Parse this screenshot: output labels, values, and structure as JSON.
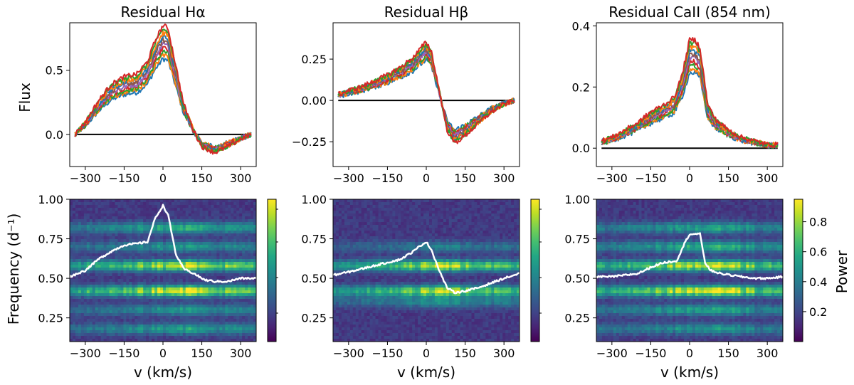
{
  "figure": {
    "flux_ylabel": "Flux",
    "freq_ylabel": "Frequency (d⁻¹)",
    "xlabel": "v (km/s)",
    "colorbar_label": "Power"
  },
  "colors": {
    "profiles": [
      "#1f77b4",
      "#ff7f0e",
      "#2ca02c",
      "#d62728",
      "#9467bd",
      "#8c564b"
    ],
    "zero_line": "#000000",
    "overlay_line": "#ffffff"
  },
  "chart_data": [
    {
      "type": "line",
      "title": "Residual Hα",
      "xlabel": "",
      "ylabel": "Flux",
      "xlim": [
        -360,
        360
      ],
      "ylim": [
        -0.25,
        0.87
      ],
      "xticks": [
        -300,
        -150,
        0,
        150,
        300
      ],
      "xtick_labels": [
        "−300",
        "−150",
        "0",
        "150",
        "300"
      ],
      "yticks": [
        0.0,
        0.5
      ],
      "ytick_labels": [
        "0.0",
        "0.5"
      ],
      "zero_line": 0,
      "grid": false,
      "series_profile": {
        "x": [
          -340,
          -300,
          -250,
          -200,
          -150,
          -100,
          -60,
          -30,
          0,
          20,
          50,
          80,
          120,
          150,
          200,
          250,
          300,
          340
        ],
        "y": [
          0.0,
          0.08,
          0.22,
          0.33,
          0.38,
          0.4,
          0.48,
          0.62,
          0.72,
          0.7,
          0.45,
          0.2,
          0.02,
          -0.08,
          -0.12,
          -0.08,
          -0.03,
          0.0
        ]
      }
    },
    {
      "type": "line",
      "title": "Residual Hβ",
      "xlabel": "",
      "ylabel": "",
      "xlim": [
        -360,
        360
      ],
      "ylim": [
        -0.4,
        0.47
      ],
      "xticks": [
        -300,
        -150,
        0,
        150,
        300
      ],
      "xtick_labels": [
        "−300",
        "−150",
        "0",
        "150",
        "300"
      ],
      "yticks": [
        -0.25,
        0.0,
        0.25
      ],
      "ytick_labels": [
        "−0.25",
        "0.00",
        "0.25"
      ],
      "zero_line": 0,
      "grid": false,
      "series_profile": {
        "x": [
          -340,
          -300,
          -250,
          -200,
          -150,
          -100,
          -50,
          -20,
          0,
          20,
          50,
          80,
          110,
          150,
          200,
          250,
          300,
          340
        ],
        "y": [
          0.03,
          0.05,
          0.07,
          0.1,
          0.13,
          0.17,
          0.22,
          0.27,
          0.3,
          0.25,
          0.05,
          -0.15,
          -0.22,
          -0.18,
          -0.12,
          -0.06,
          -0.02,
          0.0
        ]
      }
    },
    {
      "type": "line",
      "title": "Residual CaII (854 nm)",
      "xlabel": "",
      "ylabel": "",
      "xlim": [
        -360,
        360
      ],
      "ylim": [
        -0.06,
        0.41
      ],
      "xticks": [
        -300,
        -150,
        0,
        150,
        300
      ],
      "xtick_labels": [
        "−300",
        "−150",
        "0",
        "150",
        "300"
      ],
      "yticks": [
        0.0,
        0.2,
        0.4
      ],
      "ytick_labels": [
        "0.0",
        "0.2",
        "0.4"
      ],
      "zero_line": 0,
      "grid": false,
      "series_profile": {
        "x": [
          -340,
          -300,
          -250,
          -200,
          -150,
          -100,
          -60,
          -30,
          0,
          20,
          40,
          70,
          100,
          150,
          200,
          250,
          300,
          340
        ],
        "y": [
          0.02,
          0.03,
          0.05,
          0.07,
          0.1,
          0.12,
          0.14,
          0.2,
          0.3,
          0.3,
          0.28,
          0.12,
          0.08,
          0.05,
          0.03,
          0.02,
          0.01,
          0.01
        ]
      }
    },
    {
      "type": "heatmap",
      "title": "",
      "xlabel": "v (km/s)",
      "ylabel": "Frequency (d⁻¹)",
      "xlim": [
        -360,
        360
      ],
      "ylim": [
        0.1,
        1.0
      ],
      "xticks": [
        -300,
        -150,
        0,
        150,
        300
      ],
      "xtick_labels": [
        "−300",
        "−150",
        "0",
        "150",
        "300"
      ],
      "yticks": [
        0.25,
        0.5,
        0.75,
        1.0
      ],
      "ytick_labels": [
        "0.25",
        "0.50",
        "0.75",
        "1.00"
      ],
      "colorbar_label": "",
      "colorbar_ticks": [],
      "bands": [
        {
          "freq": 0.82,
          "strength": 0.45
        },
        {
          "freq": 0.7,
          "strength": 0.35
        },
        {
          "freq": 0.58,
          "strength": 0.75
        },
        {
          "freq": 0.42,
          "strength": 0.8
        },
        {
          "freq": 0.3,
          "strength": 0.35
        },
        {
          "freq": 0.18,
          "strength": 0.4
        }
      ],
      "overlay_profile": {
        "x": [
          -360,
          -300,
          -250,
          -200,
          -150,
          -100,
          -60,
          -30,
          0,
          20,
          50,
          80,
          120,
          160,
          200,
          250,
          300,
          360
        ],
        "y": [
          0.51,
          0.55,
          0.62,
          0.67,
          0.71,
          0.72,
          0.73,
          0.88,
          0.96,
          0.9,
          0.65,
          0.56,
          0.53,
          0.49,
          0.48,
          0.48,
          0.5,
          0.5
        ]
      }
    },
    {
      "type": "heatmap",
      "title": "",
      "xlabel": "v (km/s)",
      "ylabel": "",
      "xlim": [
        -360,
        360
      ],
      "ylim": [
        0.1,
        1.0
      ],
      "xticks": [
        -300,
        -150,
        0,
        150,
        300
      ],
      "xtick_labels": [
        "−300",
        "−150",
        "0",
        "150",
        "300"
      ],
      "yticks": [
        0.25,
        0.5,
        0.75,
        1.0
      ],
      "ytick_labels": [
        "0.25",
        "0.50",
        "0.75",
        "1.00"
      ],
      "colorbar_label": "",
      "colorbar_ticks": [],
      "bands": [
        {
          "freq": 0.58,
          "strength": 0.7
        },
        {
          "freq": 0.42,
          "strength": 0.7
        },
        {
          "freq": 0.35,
          "strength": 0.3
        },
        {
          "freq": 0.7,
          "strength": 0.25
        }
      ],
      "overlay_profile": {
        "x": [
          -360,
          -300,
          -250,
          -200,
          -150,
          -100,
          -50,
          -20,
          0,
          20,
          50,
          80,
          110,
          150,
          200,
          250,
          300,
          360
        ],
        "y": [
          0.52,
          0.54,
          0.56,
          0.58,
          0.6,
          0.62,
          0.67,
          0.71,
          0.73,
          0.68,
          0.55,
          0.44,
          0.41,
          0.42,
          0.44,
          0.47,
          0.5,
          0.53
        ]
      }
    },
    {
      "type": "heatmap",
      "title": "",
      "xlabel": "v (km/s)",
      "ylabel": "",
      "xlim": [
        -360,
        360
      ],
      "ylim": [
        0.1,
        1.0
      ],
      "xticks": [
        -300,
        -150,
        0,
        150,
        300
      ],
      "xtick_labels": [
        "−300",
        "−150",
        "0",
        "150",
        "300"
      ],
      "yticks": [
        0.25,
        0.5,
        0.75,
        1.0
      ],
      "ytick_labels": [
        "0.25",
        "0.50",
        "0.75",
        "1.00"
      ],
      "colorbar_label": "Power",
      "colorbar_range": [
        0.0,
        0.95
      ],
      "colorbar_ticks": [
        0.2,
        0.4,
        0.6,
        0.8
      ],
      "colorbar_tick_labels": [
        "0.2",
        "0.4",
        "0.6",
        "0.8"
      ],
      "bands": [
        {
          "freq": 0.82,
          "strength": 0.4
        },
        {
          "freq": 0.7,
          "strength": 0.45
        },
        {
          "freq": 0.58,
          "strength": 0.75
        },
        {
          "freq": 0.42,
          "strength": 0.8
        },
        {
          "freq": 0.3,
          "strength": 0.4
        },
        {
          "freq": 0.18,
          "strength": 0.35
        }
      ],
      "overlay_profile": {
        "x": [
          -360,
          -300,
          -250,
          -200,
          -150,
          -100,
          -50,
          -20,
          0,
          20,
          40,
          60,
          80,
          120,
          160,
          200,
          250,
          300,
          360
        ],
        "y": [
          0.51,
          0.51,
          0.52,
          0.53,
          0.57,
          0.6,
          0.61,
          0.72,
          0.78,
          0.78,
          0.78,
          0.6,
          0.55,
          0.53,
          0.52,
          0.51,
          0.5,
          0.5,
          0.51
        ]
      }
    }
  ]
}
